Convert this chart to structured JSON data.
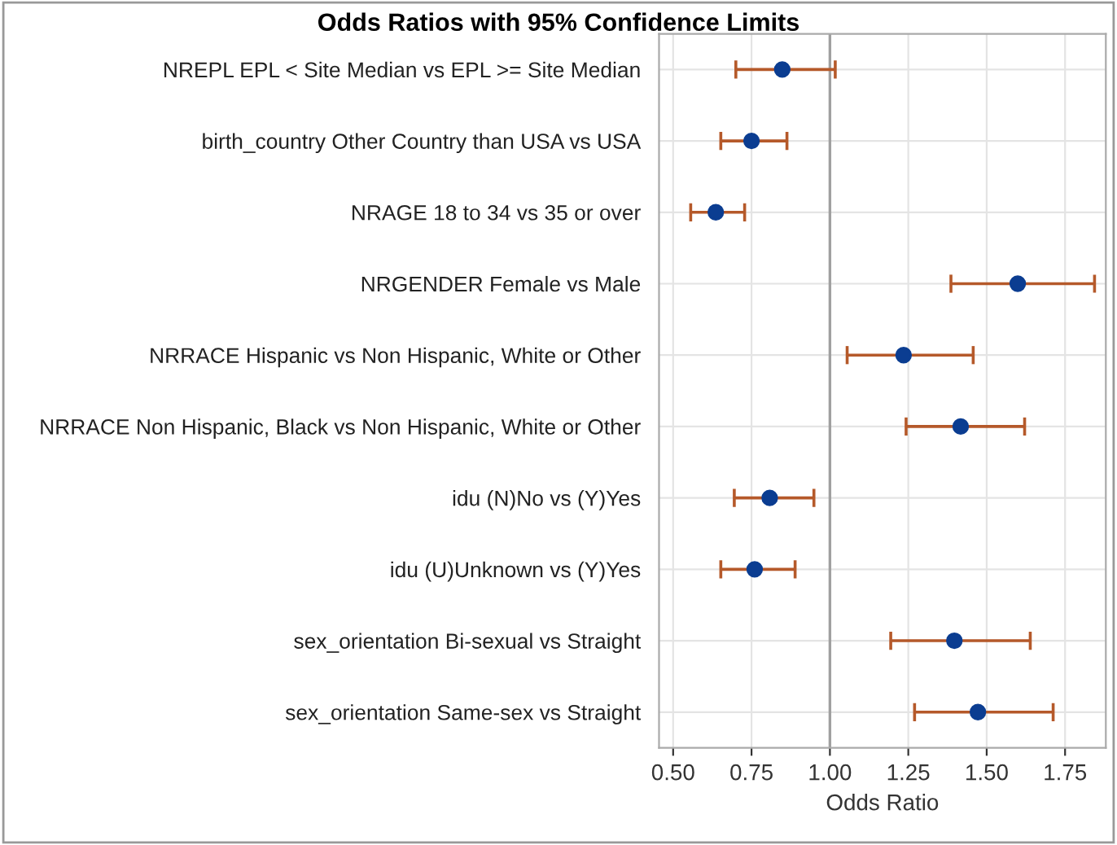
{
  "chart_data": {
    "type": "scatter",
    "orientation": "horizontal",
    "title": "Odds Ratios with 95% Confidence Limits",
    "xlabel": "Odds Ratio",
    "categories": [
      "NREPL EPL < Site Median vs EPL >= Site Median",
      "birth_country Other Country than USA vs USA",
      "NRAGE 18 to 34 vs 35 or over",
      "NRGENDER Female vs Male",
      "NRRACE Hispanic vs Non Hispanic, White or Other",
      "NRRACE Non Hispanic, Black vs Non Hispanic, White or Other",
      "idu (N)No vs (Y)Yes",
      "idu (U)Unknown vs (Y)Yes",
      "sex_orientation Bi-sexual vs Straight",
      "sex_orientation Same-sex vs Straight"
    ],
    "series": [
      {
        "color": "#0b3d91",
        "values": [
          0.848,
          0.75,
          0.636,
          1.599,
          1.235,
          1.417,
          0.808,
          0.76,
          1.397,
          1.472
        ],
        "errors": [
          [
            0.7,
            1.017
          ],
          [
            0.652,
            0.863
          ],
          [
            0.556,
            0.728
          ],
          [
            1.386,
            1.844
          ],
          [
            1.055,
            1.457
          ],
          [
            1.243,
            1.621
          ],
          [
            0.695,
            0.949
          ],
          [
            0.652,
            0.889
          ],
          [
            1.194,
            1.639
          ],
          [
            1.27,
            1.712
          ]
        ]
      }
    ],
    "xlim": [
      0.455,
      1.88
    ],
    "xticks": [
      {
        "value": 0.5,
        "label": "0.50"
      },
      {
        "value": 0.75,
        "label": "0.75"
      },
      {
        "value": 1.0,
        "label": "1.00"
      },
      {
        "value": 1.25,
        "label": "1.25"
      },
      {
        "value": 1.5,
        "label": "1.50"
      },
      {
        "value": 1.75,
        "label": "1.75"
      }
    ],
    "ref_lines": [
      {
        "axis": "x",
        "value": 1.0,
        "color": "#a0a0a0"
      }
    ],
    "grid": true,
    "marker": "circle"
  }
}
